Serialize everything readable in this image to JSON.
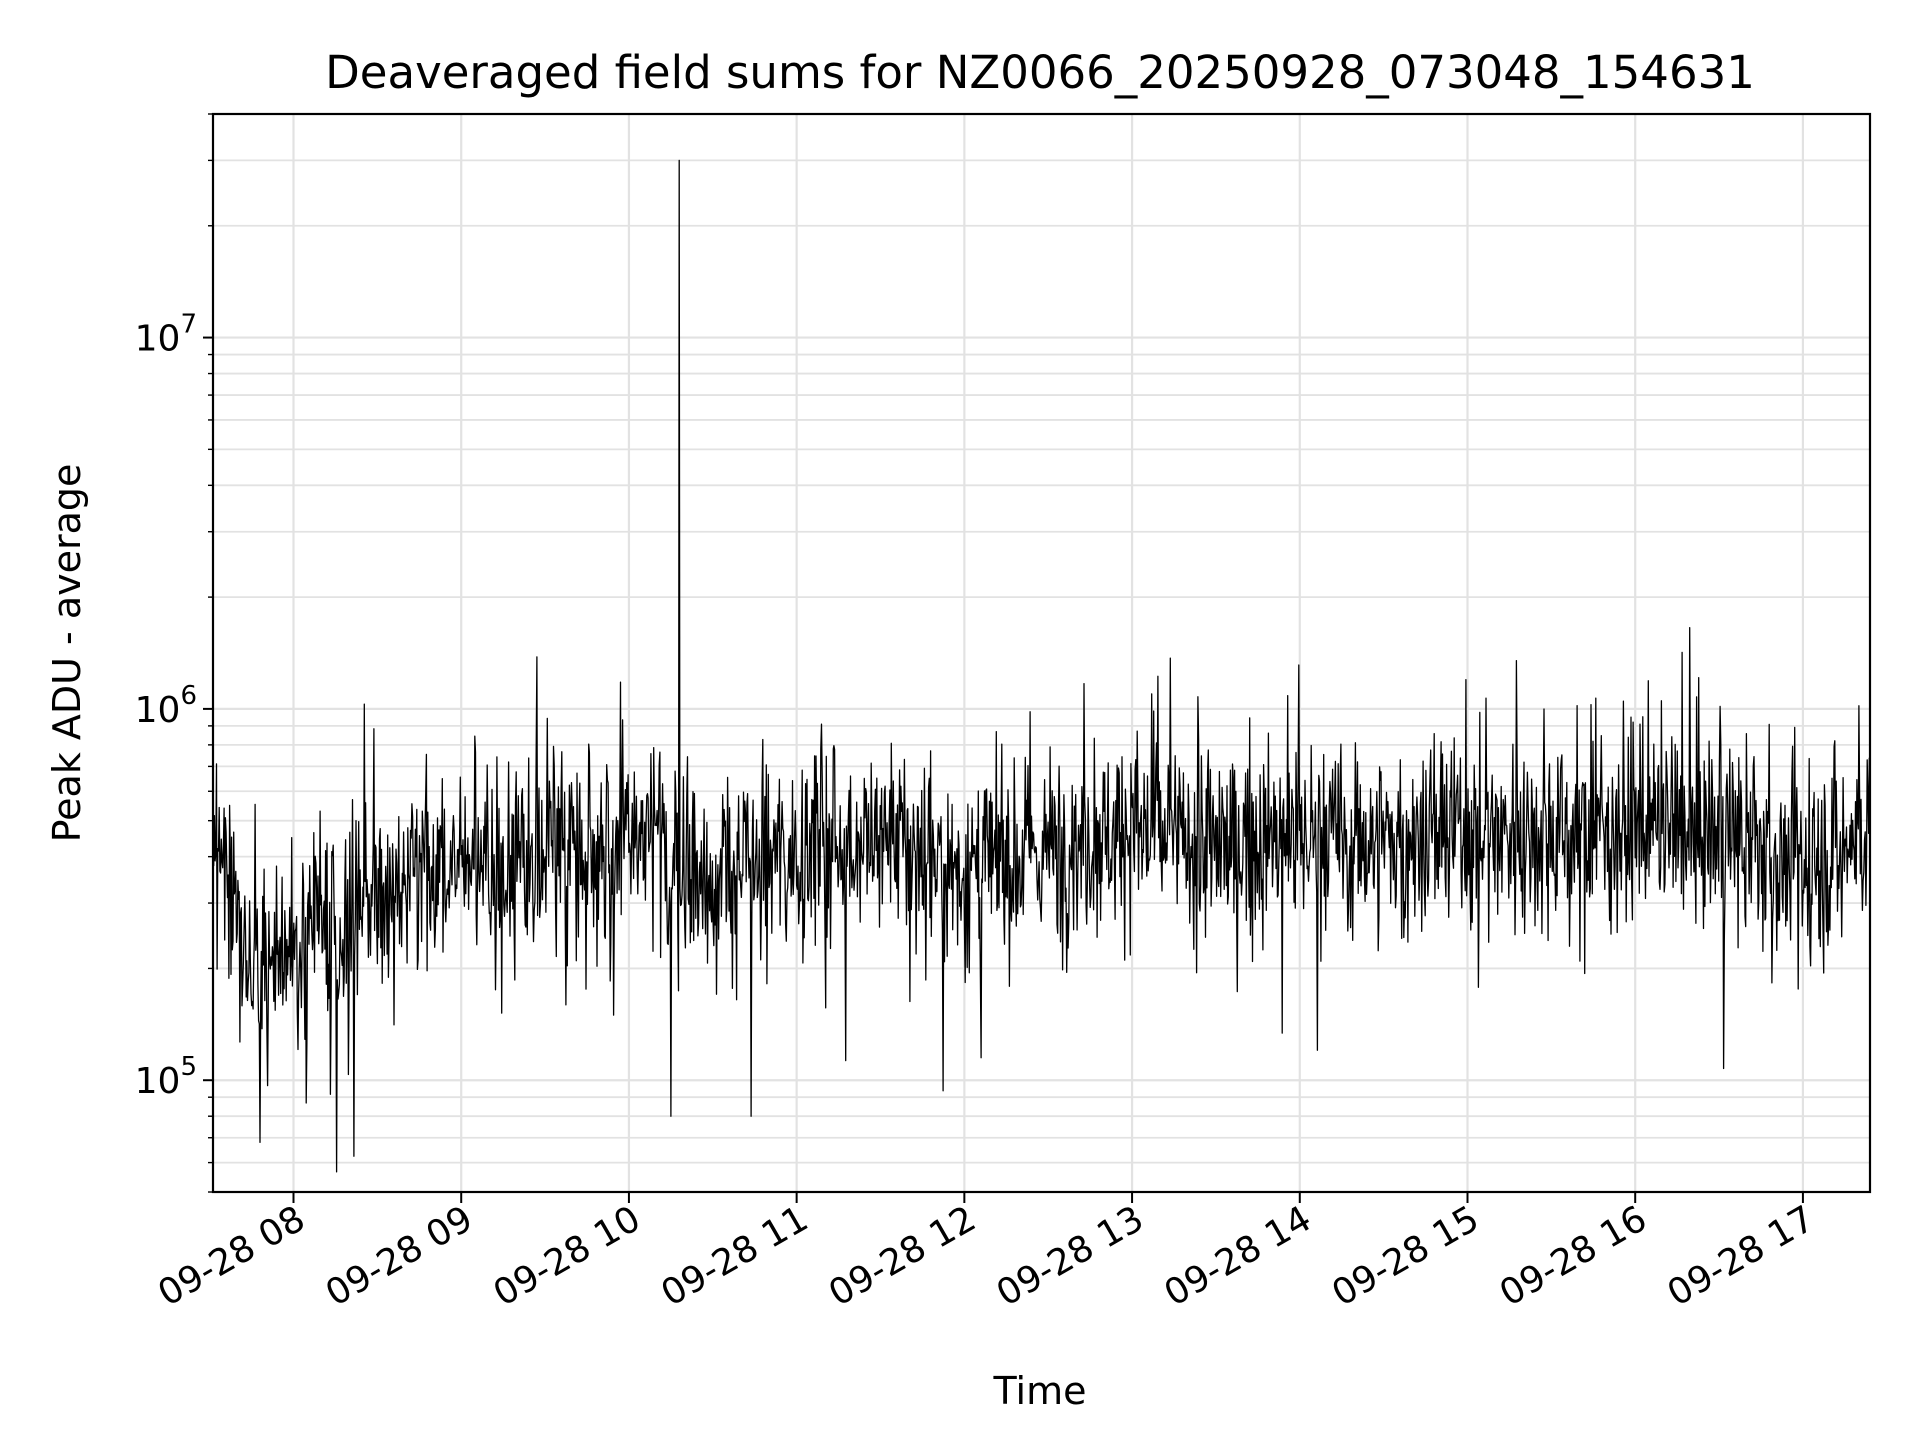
{
  "chart_data": {
    "type": "line",
    "title": "Deaveraged field sums for NZ0066_20250928_073048_154631",
    "xlabel": "Time",
    "ylabel": "Peak ADU - average",
    "yscale": "log",
    "ylim": [
      50000,
      40000000
    ],
    "xlim_hours": [
      7.52,
      17.4
    ],
    "grid": true,
    "line_color": "#000000",
    "x_ticks": [
      {
        "hour": 8,
        "label": "09-28 08"
      },
      {
        "hour": 9,
        "label": "09-28 09"
      },
      {
        "hour": 10,
        "label": "09-28 10"
      },
      {
        "hour": 11,
        "label": "09-28 11"
      },
      {
        "hour": 12,
        "label": "09-28 12"
      },
      {
        "hour": 13,
        "label": "09-28 13"
      },
      {
        "hour": 14,
        "label": "09-28 14"
      },
      {
        "hour": 15,
        "label": "09-28 15"
      },
      {
        "hour": 16,
        "label": "09-28 16"
      },
      {
        "hour": 17,
        "label": "09-28 17"
      }
    ],
    "y_ticks": [
      {
        "value": 100000,
        "base": "10",
        "exp": "5"
      },
      {
        "value": 1000000,
        "base": "10",
        "exp": "6"
      },
      {
        "value": 10000000,
        "base": "10",
        "exp": "7"
      }
    ],
    "baseline_trend": [
      {
        "hour": 7.52,
        "value": 480000
      },
      {
        "hour": 7.8,
        "value": 180000
      },
      {
        "hour": 8.0,
        "value": 230000
      },
      {
        "hour": 8.5,
        "value": 300000
      },
      {
        "hour": 9.0,
        "value": 380000
      },
      {
        "hour": 9.5,
        "value": 420000
      },
      {
        "hour": 10.0,
        "value": 450000
      },
      {
        "hour": 10.5,
        "value": 340000
      },
      {
        "hour": 11.0,
        "value": 420000
      },
      {
        "hour": 11.5,
        "value": 450000
      },
      {
        "hour": 12.0,
        "value": 360000
      },
      {
        "hour": 12.5,
        "value": 420000
      },
      {
        "hour": 13.0,
        "value": 480000
      },
      {
        "hour": 13.5,
        "value": 420000
      },
      {
        "hour": 14.0,
        "value": 450000
      },
      {
        "hour": 14.5,
        "value": 440000
      },
      {
        "hour": 15.0,
        "value": 460000
      },
      {
        "hour": 15.5,
        "value": 470000
      },
      {
        "hour": 16.0,
        "value": 480000
      },
      {
        "hour": 16.5,
        "value": 460000
      },
      {
        "hour": 17.0,
        "value": 360000
      },
      {
        "hour": 17.4,
        "value": 480000
      }
    ],
    "notable_points": [
      {
        "hour": 7.8,
        "value": 68000
      },
      {
        "hour": 8.42,
        "value": 1030000
      },
      {
        "hour": 9.45,
        "value": 1380000
      },
      {
        "hour": 9.95,
        "value": 1180000
      },
      {
        "hour": 10.25,
        "value": 80000
      },
      {
        "hour": 10.3,
        "value": 30000000
      },
      {
        "hour": 10.73,
        "value": 80000
      },
      {
        "hour": 12.1,
        "value": 115000
      },
      {
        "hour": 13.23,
        "value": 1370000
      },
      {
        "hour": 16.08,
        "value": 1190000
      }
    ],
    "noise_amplitude_log10": 0.22,
    "sample_count": 2400
  }
}
